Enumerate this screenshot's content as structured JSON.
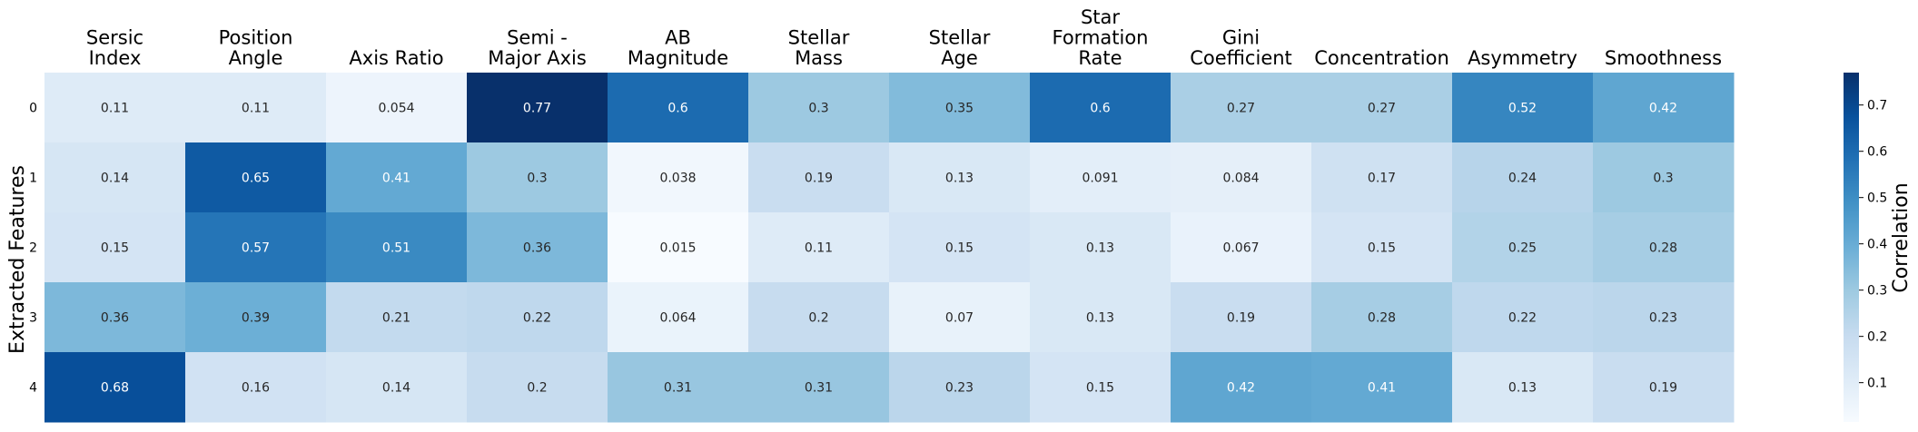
{
  "chart_data": {
    "type": "heatmap",
    "columns": [
      "Sersic\nIndex",
      "Position\nAngle",
      "Axis Ratio",
      "Semi -\nMajor Axis",
      "AB\nMagnitude",
      "Stellar\nMass",
      "Stellar\nAge",
      "Star\nFormation\nRate",
      "Gini\nCoefficient",
      "Concentration",
      "Asymmetry",
      "Smoothness"
    ],
    "rows": [
      "0",
      "1",
      "2",
      "3",
      "4"
    ],
    "values": [
      [
        0.11,
        0.11,
        0.054,
        0.77,
        0.6,
        0.3,
        0.35,
        0.6,
        0.27,
        0.27,
        0.52,
        0.42
      ],
      [
        0.14,
        0.65,
        0.41,
        0.3,
        0.038,
        0.19,
        0.13,
        0.091,
        0.084,
        0.17,
        0.24,
        0.3
      ],
      [
        0.15,
        0.57,
        0.51,
        0.36,
        0.015,
        0.11,
        0.15,
        0.13,
        0.067,
        0.15,
        0.25,
        0.28
      ],
      [
        0.36,
        0.39,
        0.21,
        0.22,
        0.064,
        0.2,
        0.07,
        0.13,
        0.19,
        0.28,
        0.22,
        0.23
      ],
      [
        0.68,
        0.16,
        0.14,
        0.2,
        0.31,
        0.31,
        0.23,
        0.15,
        0.42,
        0.41,
        0.13,
        0.19
      ]
    ],
    "ylabel": "Extracted Features",
    "colorbar_label": "Correlation",
    "colorbar_ticks": [
      0.1,
      0.2,
      0.3,
      0.4,
      0.5,
      0.6,
      0.7
    ],
    "colorbar_range": [
      0.015,
      0.77
    ],
    "colormap": "Blues",
    "annotated": true
  }
}
